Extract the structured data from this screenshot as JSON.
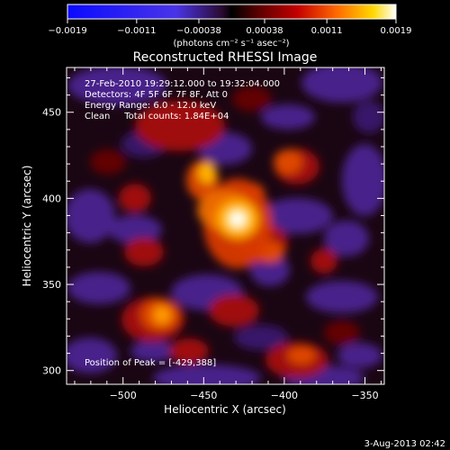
{
  "colorbar": {
    "tick_labels": [
      "-0.0019",
      "-0.0011",
      "-0.00038",
      "0.00038",
      "0.0011",
      "0.0019"
    ],
    "unit_label": "(photons cm⁻² s⁻¹ asec⁻²)",
    "range": [
      -0.0019,
      0.0019
    ]
  },
  "chart_data": {
    "type": "heatmap",
    "title": "Reconstructed RHESSI Image",
    "xlabel": "Heliocentric X (arcsec)",
    "ylabel": "Heliocentric Y (arcsec)",
    "xlim": [
      -535,
      -338
    ],
    "ylim": [
      292,
      476
    ],
    "x_ticks": [
      -500,
      -450,
      -400,
      -350
    ],
    "y_ticks": [
      300,
      350,
      400,
      450
    ],
    "x_tick_labels": [
      "−500",
      "−450",
      "−400",
      "−350"
    ],
    "y_tick_labels": [
      "300",
      "350",
      "400",
      "450"
    ],
    "annotations": [
      "27-Feb-2010 19:29:12.000 to 19:32:04.000",
      "Detectors: 4F 5F 6F 7F 8F, Att 0",
      "Energy Range: 6.0 - 12.0 keV",
      "Clean     Total counts: 1.84E+04"
    ],
    "peak_label": "Position of Peak = [-429,388]",
    "peak": [
      -429,
      388
    ],
    "footer_date": "3-Aug-2013 02:42"
  }
}
